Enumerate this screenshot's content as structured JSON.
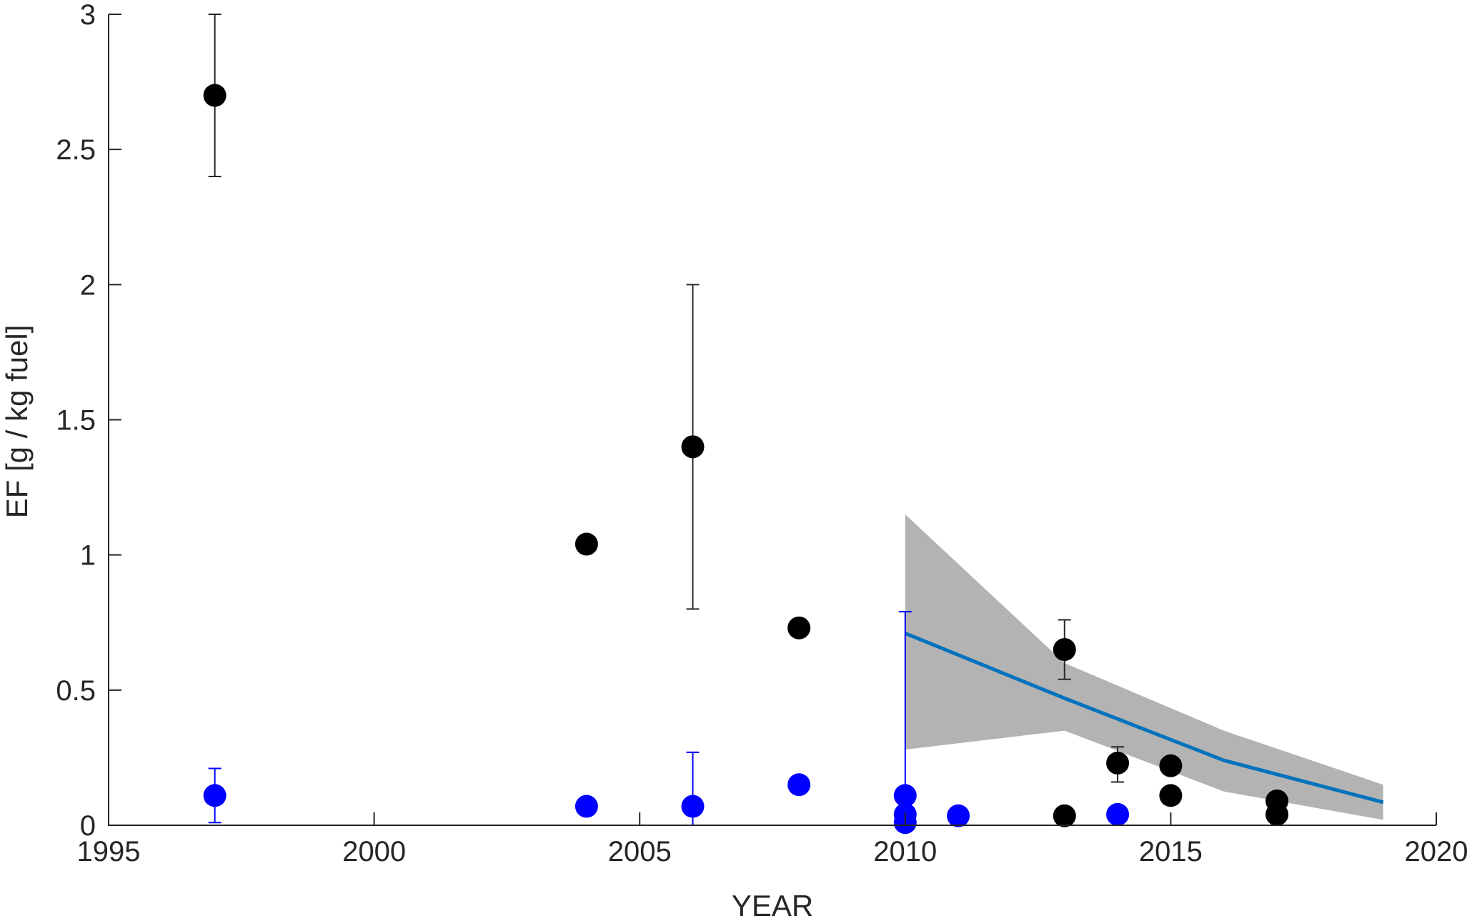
{
  "chart_data": {
    "type": "scatter",
    "title": "",
    "xlabel": "YEAR",
    "ylabel": "EF [g / kg fuel]",
    "xlim": [
      1995,
      2020
    ],
    "ylim": [
      0,
      3
    ],
    "x_ticks": [
      1995,
      2000,
      2005,
      2010,
      2015,
      2020
    ],
    "y_ticks": [
      0,
      0.5,
      1,
      1.5,
      2,
      2.5,
      3
    ],
    "x_tick_labels": [
      "1995",
      "2000",
      "2005",
      "2010",
      "2015",
      "2020"
    ],
    "y_tick_labels": [
      "0",
      "0.5",
      "1",
      "1.5",
      "2",
      "2.5",
      "3"
    ],
    "grid": false,
    "legend": "none",
    "colors": {
      "black_series": "#000000",
      "blue_series": "#0000ff",
      "trend_line": "#0072bd",
      "band": "#b3b3b3",
      "black_error": "#262626",
      "blue_error": "#0000ff"
    },
    "series": [
      {
        "color": "black_series",
        "points": [
          {
            "x": 1997,
            "y": 2.7,
            "err_low": 2.4,
            "err_high": 3.0
          },
          {
            "x": 2004,
            "y": 1.04
          },
          {
            "x": 2006,
            "y": 1.4,
            "err_low": 0.8,
            "err_high": 2.0
          },
          {
            "x": 2008,
            "y": 0.73
          },
          {
            "x": 2013,
            "y": 0.65,
            "err_low": 0.54,
            "err_high": 0.76
          },
          {
            "x": 2013,
            "y": 0.035
          },
          {
            "x": 2014,
            "y": 0.23,
            "err_low": 0.16,
            "err_high": 0.29
          },
          {
            "x": 2015,
            "y": 0.22
          },
          {
            "x": 2015,
            "y": 0.11
          },
          {
            "x": 2017,
            "y": 0.09
          },
          {
            "x": 2017,
            "y": 0.04
          }
        ]
      },
      {
        "color": "blue_series",
        "points": [
          {
            "x": 1997,
            "y": 0.11,
            "err_low": 0.01,
            "err_high": 0.21
          },
          {
            "x": 2004,
            "y": 0.07
          },
          {
            "x": 2006,
            "y": 0.07,
            "err_low": 0.0,
            "err_high": 0.27
          },
          {
            "x": 2008,
            "y": 0.15
          },
          {
            "x": 2010,
            "y": 0.11,
            "err_low": 0.0,
            "err_high": 0.79
          },
          {
            "x": 2010,
            "y": 0.04
          },
          {
            "x": 2010,
            "y": 0.01
          },
          {
            "x": 2011,
            "y": 0.035
          },
          {
            "x": 2014,
            "y": 0.04
          }
        ]
      }
    ],
    "trend": {
      "color": "trend_line",
      "x": [
        2010,
        2013,
        2016,
        2019
      ],
      "y": [
        0.71,
        0.47,
        0.24,
        0.085
      ]
    },
    "band": {
      "color": "band",
      "x": [
        2010,
        2013,
        2016,
        2019
      ],
      "upper": [
        1.15,
        0.6,
        0.35,
        0.15
      ],
      "lower": [
        0.28,
        0.35,
        0.125,
        0.02
      ]
    }
  }
}
